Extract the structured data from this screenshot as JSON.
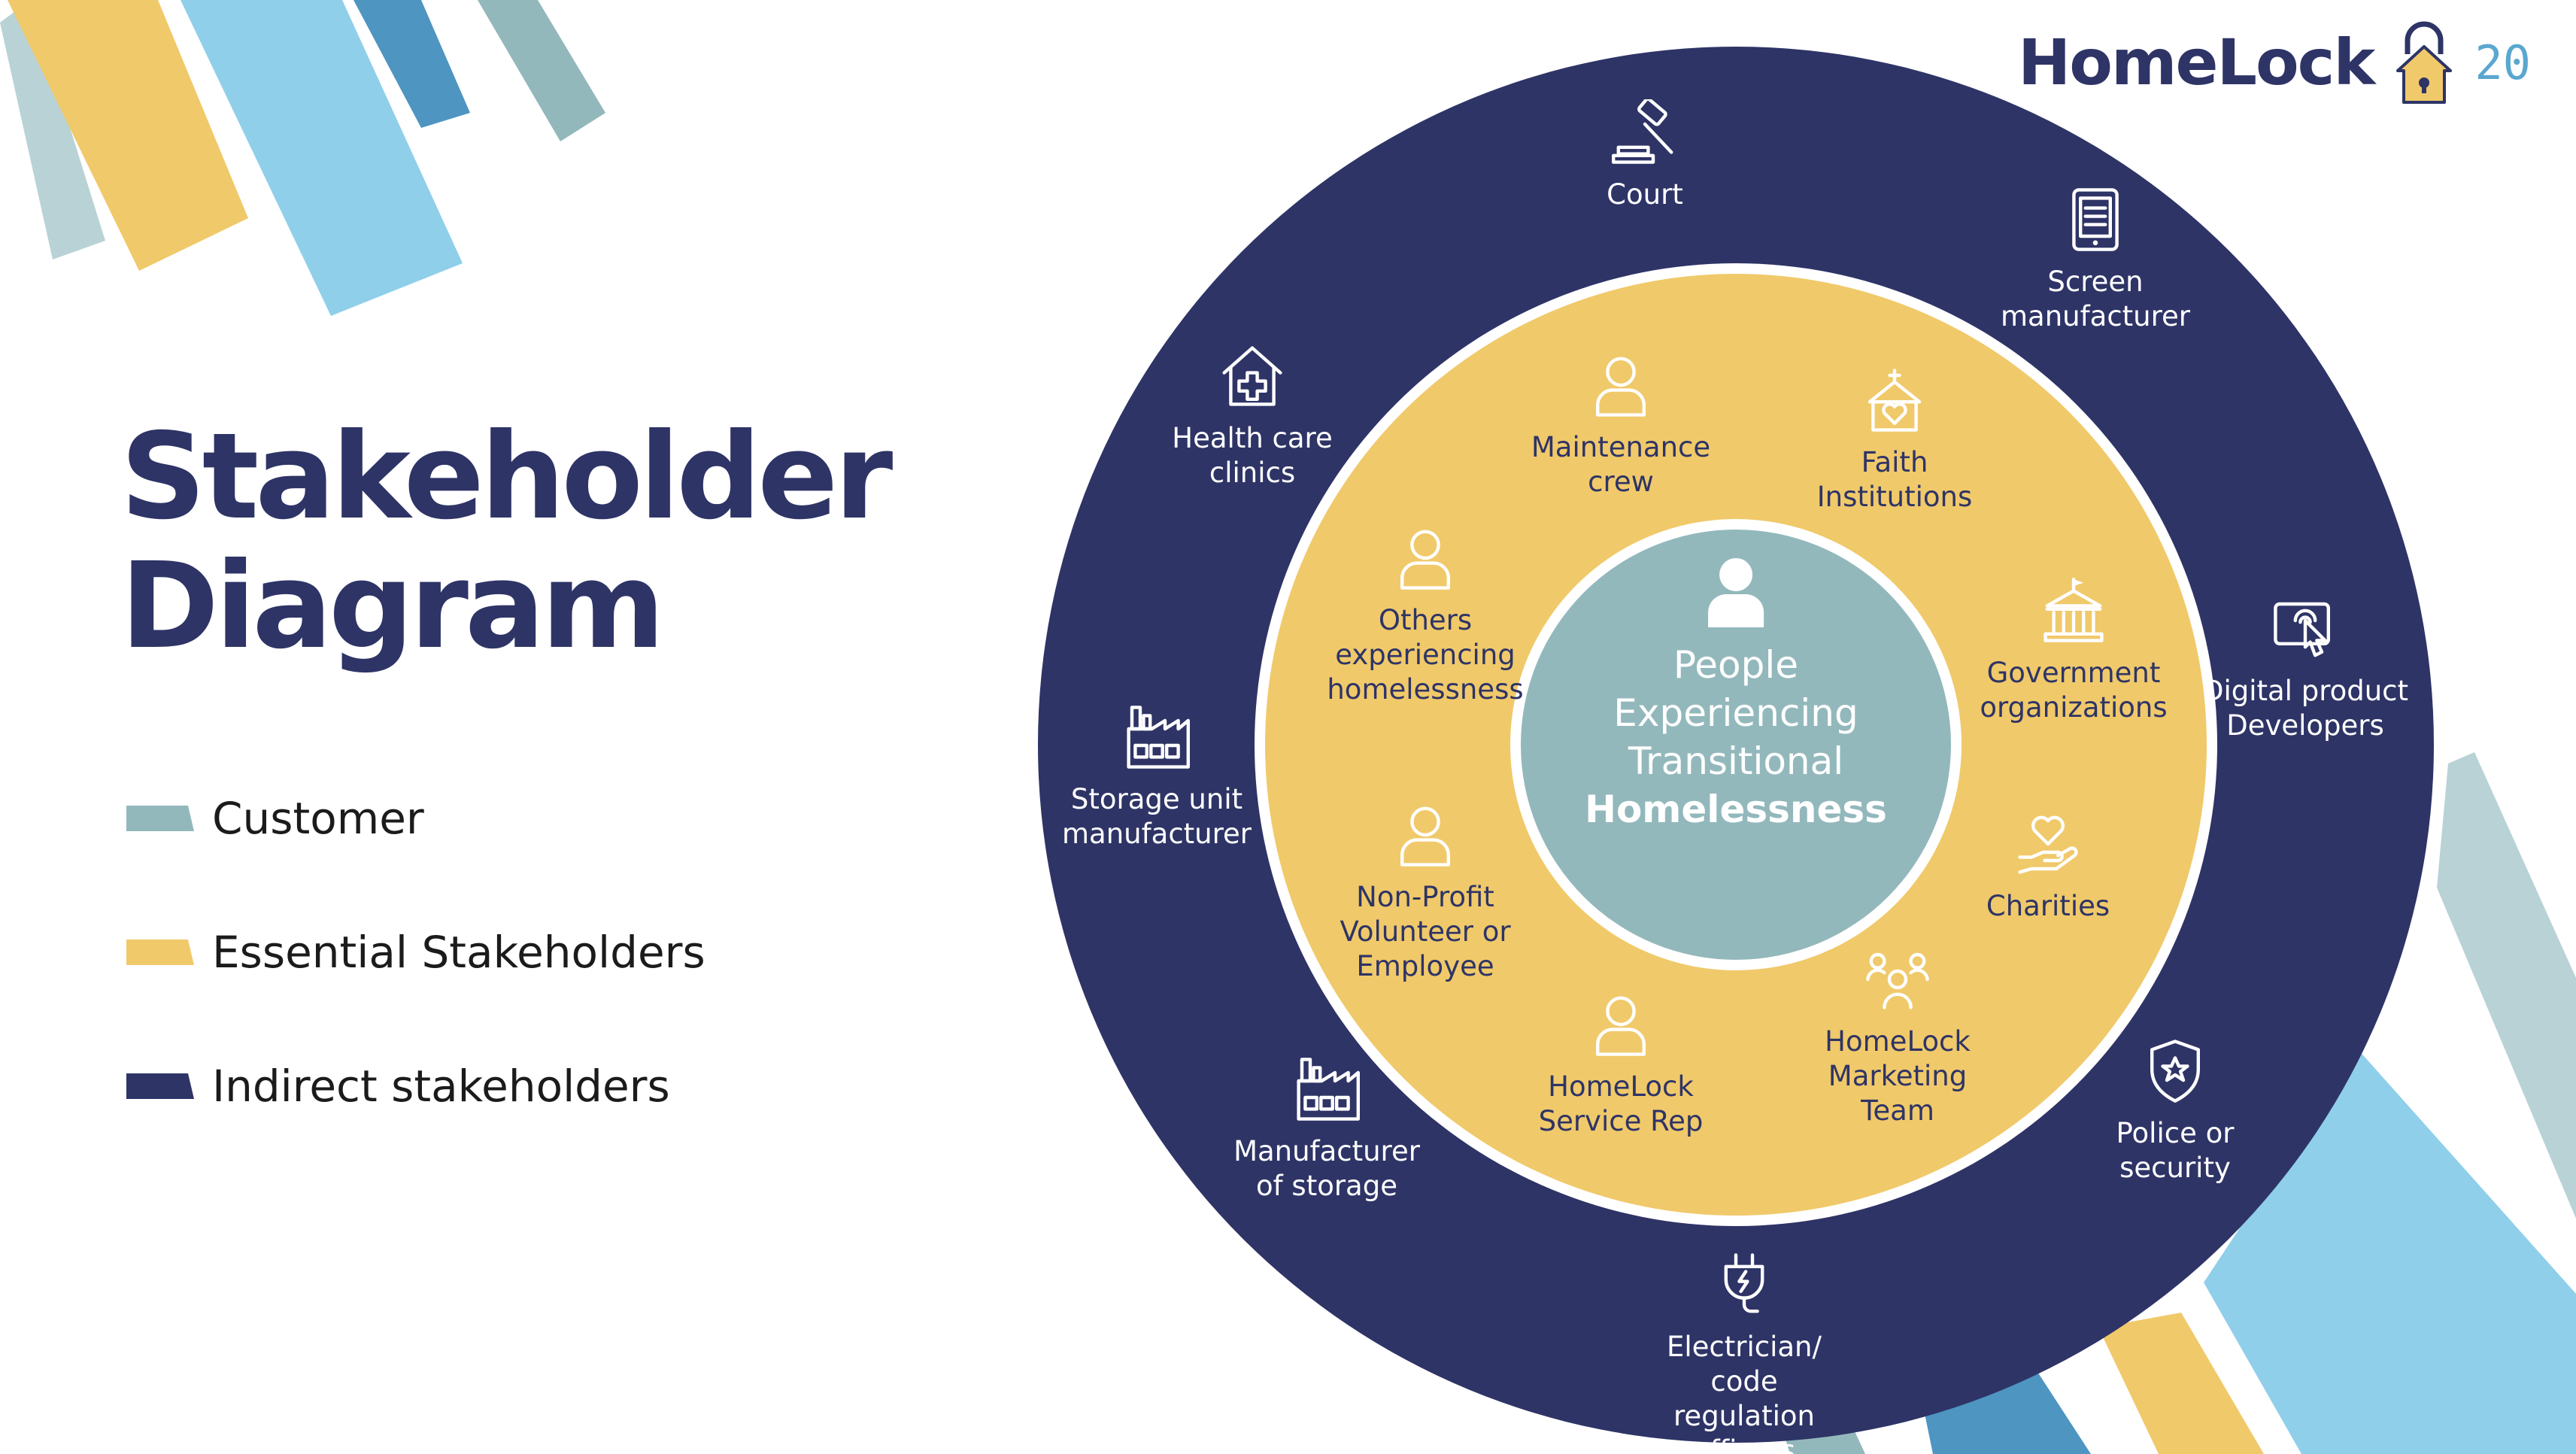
{
  "brand": {
    "name": "HomeLock",
    "page_number": "20"
  },
  "title": {
    "line1": "Stakeholder",
    "line2": "Diagram"
  },
  "colors": {
    "customer": "#93b8bc",
    "essential": "#f0c96a",
    "indirect": "#2e3466",
    "deco_light_blue": "#8fcfea",
    "deco_mid_blue": "#4e95c1",
    "deco_pale_teal": "#b9d2d5",
    "deco_teal": "#93b8bc"
  },
  "legend": [
    {
      "label": "Customer",
      "color": "#93b8bc"
    },
    {
      "label": "Essential Stakeholders",
      "color": "#f0c96a"
    },
    {
      "label": "Indirect stakeholders",
      "color": "#2e3466"
    }
  ],
  "center": {
    "icon": "person-icon",
    "label": "People\nExperiencing\nTransitional",
    "label_bold": "Homelessness"
  },
  "essential": [
    {
      "label": "Maintenance\ncrew",
      "icon": "person-icon"
    },
    {
      "label": "Faith\nInstitutions",
      "icon": "church-icon"
    },
    {
      "label": "Government\norganizations",
      "icon": "government-building-icon"
    },
    {
      "label": "Charities",
      "icon": "heart-hand-icon"
    },
    {
      "label": "HomeLock\nMarketing\nTeam",
      "icon": "team-icon"
    },
    {
      "label": "HomeLock\nService Rep",
      "icon": "person-icon"
    },
    {
      "label": "Non-Profit\nVolunteer or\nEmployee",
      "icon": "person-icon"
    },
    {
      "label": "Others\nexperiencing\nhomelessness",
      "icon": "person-icon"
    }
  ],
  "indirect": [
    {
      "label": "Court",
      "icon": "gavel-icon"
    },
    {
      "label": "Screen\nmanufacturer",
      "icon": "tablet-icon"
    },
    {
      "label": "Digital product\nDevelopers",
      "icon": "touch-device-icon"
    },
    {
      "label": "Police or\nsecurity",
      "icon": "police-badge-icon"
    },
    {
      "label": "Electrician/ code\nregulation officers",
      "icon": "plug-icon"
    },
    {
      "label": "Manufacturer\nof storage",
      "icon": "factory-icon"
    },
    {
      "label": "Storage unit\nmanufacturer",
      "icon": "factory-icon"
    },
    {
      "label": "Health care\nclinics",
      "icon": "health-clinic-icon"
    }
  ]
}
